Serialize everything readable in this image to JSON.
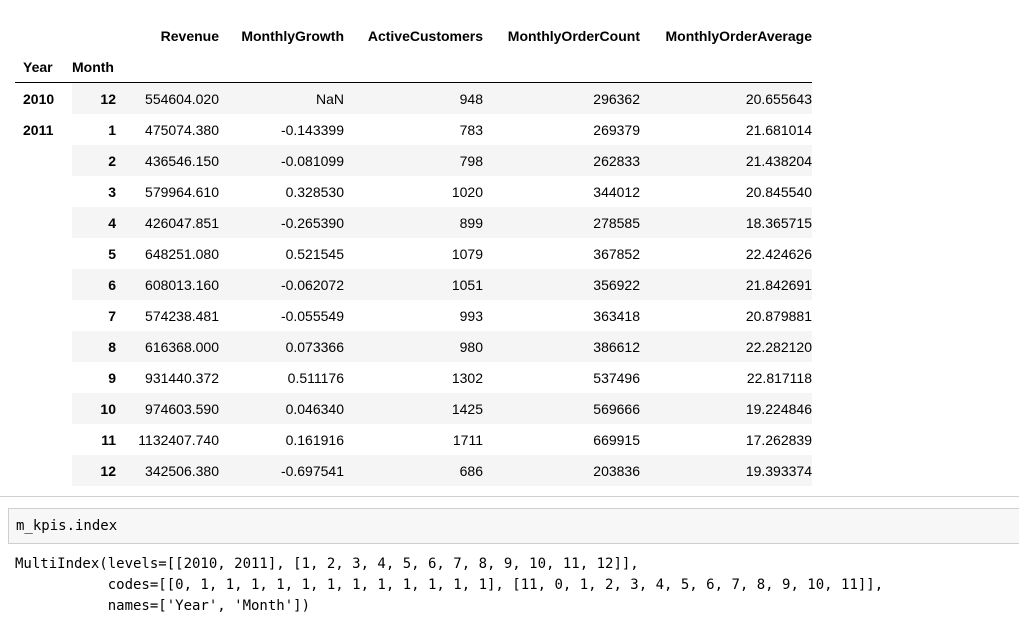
{
  "table": {
    "columns": [
      "Revenue",
      "MonthlyGrowth",
      "ActiveCustomers",
      "MonthlyOrderCount",
      "MonthlyOrderAverage"
    ],
    "index_names": [
      "Year",
      "Month"
    ],
    "rows": [
      {
        "year": "2010",
        "month": "12",
        "values": [
          "554604.020",
          "NaN",
          "948",
          "296362",
          "20.655643"
        ]
      },
      {
        "year": "2011",
        "month": "1",
        "values": [
          "475074.380",
          "-0.143399",
          "783",
          "269379",
          "21.681014"
        ]
      },
      {
        "year": "",
        "month": "2",
        "values": [
          "436546.150",
          "-0.081099",
          "798",
          "262833",
          "21.438204"
        ]
      },
      {
        "year": "",
        "month": "3",
        "values": [
          "579964.610",
          "0.328530",
          "1020",
          "344012",
          "20.845540"
        ]
      },
      {
        "year": "",
        "month": "4",
        "values": [
          "426047.851",
          "-0.265390",
          "899",
          "278585",
          "18.365715"
        ]
      },
      {
        "year": "",
        "month": "5",
        "values": [
          "648251.080",
          "0.521545",
          "1079",
          "367852",
          "22.424626"
        ]
      },
      {
        "year": "",
        "month": "6",
        "values": [
          "608013.160",
          "-0.062072",
          "1051",
          "356922",
          "21.842691"
        ]
      },
      {
        "year": "",
        "month": "7",
        "values": [
          "574238.481",
          "-0.055549",
          "993",
          "363418",
          "20.879881"
        ]
      },
      {
        "year": "",
        "month": "8",
        "values": [
          "616368.000",
          "0.073366",
          "980",
          "386612",
          "22.282120"
        ]
      },
      {
        "year": "",
        "month": "9",
        "values": [
          "931440.372",
          "0.511176",
          "1302",
          "537496",
          "22.817118"
        ]
      },
      {
        "year": "",
        "month": "10",
        "values": [
          "974603.590",
          "0.046340",
          "1425",
          "569666",
          "19.224846"
        ]
      },
      {
        "year": "",
        "month": "11",
        "values": [
          "1132407.740",
          "0.161916",
          "1711",
          "669915",
          "17.262839"
        ]
      },
      {
        "year": "",
        "month": "12",
        "values": [
          "342506.380",
          "-0.697541",
          "686",
          "203836",
          "19.393374"
        ]
      }
    ]
  },
  "code_cell": {
    "source": "m_kpis.index"
  },
  "output": {
    "lines": [
      "MultiIndex(levels=[[2010, 2011], [1, 2, 3, 4, 5, 6, 7, 8, 9, 10, 11, 12]],",
      "           codes=[[0, 1, 1, 1, 1, 1, 1, 1, 1, 1, 1, 1, 1], [11, 0, 1, 2, 3, 4, 5, 6, 7, 8, 9, 10, 11]],",
      "           names=['Year', 'Month'])"
    ]
  }
}
